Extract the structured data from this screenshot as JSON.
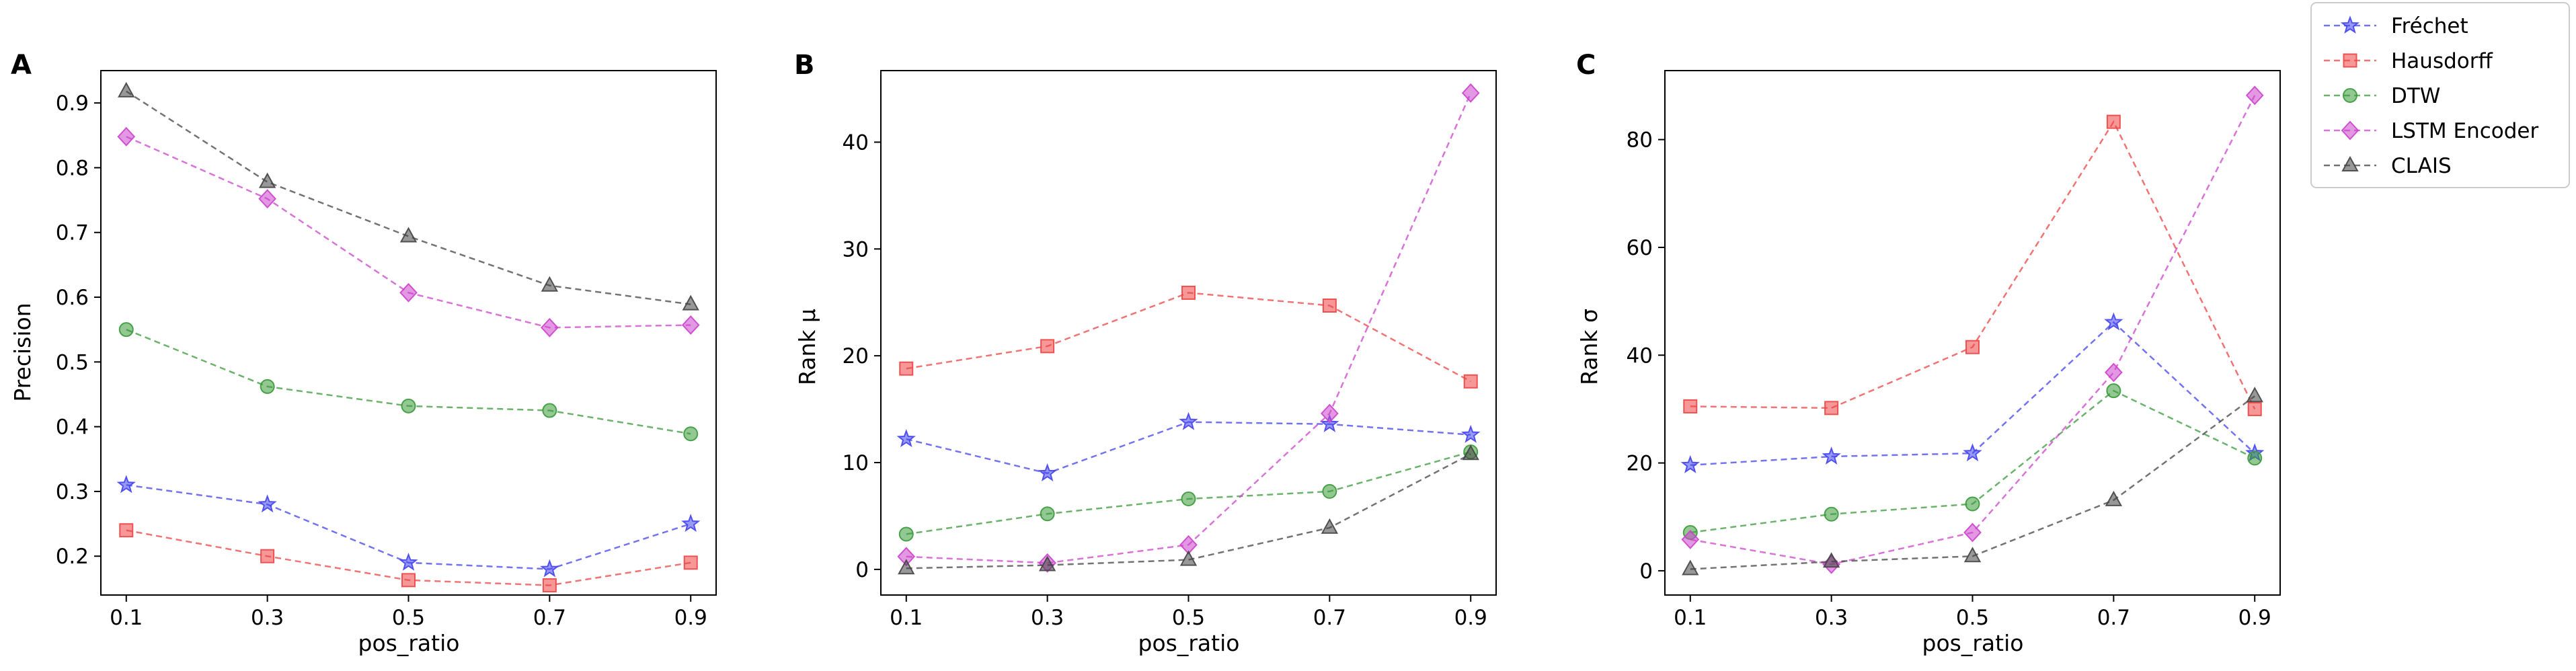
{
  "chart_data": [
    {
      "type": "line",
      "panel_label": "A",
      "xlabel": "pos_ratio",
      "ylabel": "Precision",
      "x": [
        0.1,
        0.3,
        0.5,
        0.7,
        0.9
      ],
      "x_tick_labels": [
        "0.1",
        "0.3",
        "0.5",
        "0.7",
        "0.9"
      ],
      "ylim": [
        0.14,
        0.95
      ],
      "y_ticks": [
        0.2,
        0.3,
        0.4,
        0.5,
        0.6,
        0.7,
        0.8,
        0.9
      ],
      "y_tick_labels": [
        "0.2",
        "0.3",
        "0.4",
        "0.5",
        "0.6",
        "0.7",
        "0.8",
        "0.9"
      ],
      "series": [
        {
          "name": "Fréchet",
          "values": [
            0.31,
            0.28,
            0.19,
            0.18,
            0.25
          ]
        },
        {
          "name": "Hausdorff",
          "values": [
            0.24,
            0.2,
            0.163,
            0.155,
            0.19
          ]
        },
        {
          "name": "DTW",
          "values": [
            0.55,
            0.462,
            0.432,
            0.425,
            0.389
          ]
        },
        {
          "name": "LSTM Encoder",
          "values": [
            0.848,
            0.752,
            0.607,
            0.553,
            0.557
          ]
        },
        {
          "name": "CLAIS",
          "values": [
            0.918,
            0.778,
            0.694,
            0.618,
            0.589
          ]
        }
      ]
    },
    {
      "type": "line",
      "panel_label": "B",
      "xlabel": "pos_ratio",
      "ylabel": "Rank μ",
      "x": [
        0.1,
        0.3,
        0.5,
        0.7,
        0.9
      ],
      "x_tick_labels": [
        "0.1",
        "0.3",
        "0.5",
        "0.7",
        "0.9"
      ],
      "ylim": [
        -2.4,
        46.7
      ],
      "y_ticks": [
        0,
        10,
        20,
        30,
        40
      ],
      "y_tick_labels": [
        "0",
        "10",
        "20",
        "30",
        "40"
      ],
      "series": [
        {
          "name": "Fréchet",
          "values": [
            12.2,
            9.0,
            13.8,
            13.6,
            12.6
          ]
        },
        {
          "name": "Hausdorff",
          "values": [
            18.8,
            20.9,
            25.9,
            24.7,
            17.6
          ]
        },
        {
          "name": "DTW",
          "values": [
            3.3,
            5.2,
            6.6,
            7.3,
            11.0
          ]
        },
        {
          "name": "LSTM Encoder",
          "values": [
            1.2,
            0.6,
            2.3,
            14.6,
            44.6
          ]
        },
        {
          "name": "CLAIS",
          "values": [
            0.1,
            0.4,
            0.9,
            3.9,
            10.8
          ]
        }
      ]
    },
    {
      "type": "line",
      "panel_label": "C",
      "xlabel": "pos_ratio",
      "ylabel": "Rank σ",
      "x": [
        0.1,
        0.3,
        0.5,
        0.7,
        0.9
      ],
      "x_tick_labels": [
        "0.1",
        "0.3",
        "0.5",
        "0.7",
        "0.9"
      ],
      "ylim": [
        -4.5,
        92.8
      ],
      "y_ticks": [
        0,
        20,
        40,
        60,
        80
      ],
      "y_tick_labels": [
        "0",
        "20",
        "40",
        "60",
        "80"
      ],
      "series": [
        {
          "name": "Fréchet",
          "values": [
            19.6,
            21.2,
            21.8,
            46.1,
            21.8
          ]
        },
        {
          "name": "Hausdorff",
          "values": [
            30.5,
            30.2,
            41.5,
            83.3,
            30.0
          ]
        },
        {
          "name": "DTW",
          "values": [
            7.1,
            10.5,
            12.4,
            33.4,
            20.9
          ]
        },
        {
          "name": "LSTM Encoder",
          "values": [
            5.8,
            1.2,
            7.1,
            36.8,
            88.2
          ]
        },
        {
          "name": "CLAIS",
          "values": [
            0.3,
            1.7,
            2.7,
            13.1,
            32.4
          ]
        }
      ]
    }
  ],
  "legend": {
    "placement": "top-right",
    "entries": [
      {
        "name": "Fréchet",
        "color": "#4444ee",
        "marker": "star"
      },
      {
        "name": "Hausdorff",
        "color": "#ee4444",
        "marker": "square"
      },
      {
        "name": "DTW",
        "color": "#3a9a3a",
        "marker": "circle"
      },
      {
        "name": "LSTM Encoder",
        "color": "#cc44cc",
        "marker": "diamond"
      },
      {
        "name": "CLAIS",
        "color": "#444444",
        "marker": "triangle"
      }
    ]
  }
}
